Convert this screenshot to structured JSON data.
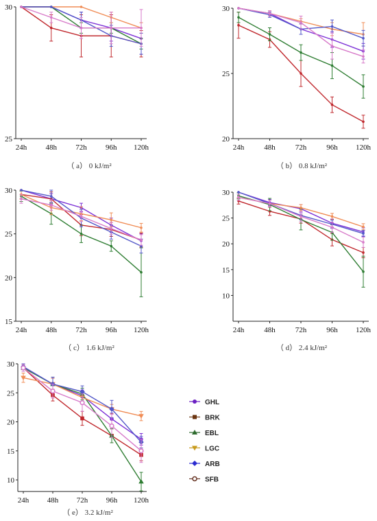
{
  "chart_data": [
    {
      "type": "line",
      "caption": "（ a） 0 kJ/m²",
      "categories": [
        "24h",
        "48h",
        "72h",
        "96h",
        "120h"
      ],
      "ylim": [
        25,
        30
      ],
      "yticks": [
        25,
        30
      ],
      "series": [
        {
          "name": "GHL",
          "values": [
            30,
            30,
            29.5,
            29.2,
            28.8
          ],
          "err": [
            0,
            0,
            0.3,
            0.5,
            0.6
          ]
        },
        {
          "name": "BRK",
          "values": [
            30,
            29.2,
            28.9,
            28.9,
            28.6
          ],
          "err": [
            0,
            0.5,
            0.8,
            0.8,
            0.5
          ]
        },
        {
          "name": "EBL",
          "values": [
            30,
            30,
            29.2,
            29.2,
            28.6
          ],
          "err": [
            0,
            0,
            0.2,
            0.2,
            0.2
          ]
        },
        {
          "name": "LGC",
          "values": [
            30,
            30,
            30,
            29.6,
            29.2
          ],
          "err": [
            0,
            0,
            0,
            0.2,
            0.2
          ]
        },
        {
          "name": "ARB",
          "values": [
            30,
            30,
            29.5,
            28.9,
            28.6
          ],
          "err": [
            0,
            0,
            0.3,
            0.4,
            0.4
          ]
        },
        {
          "name": "SFB",
          "values": [
            30,
            29.6,
            29.2,
            29.2,
            29.2
          ],
          "err": [
            0,
            0.2,
            0.4,
            0.6,
            0.7
          ]
        }
      ]
    },
    {
      "type": "line",
      "caption": "（ b） 0.8 kJ/m²",
      "categories": [
        "24h",
        "48h",
        "72h",
        "96h",
        "120h"
      ],
      "ylim": [
        20,
        30
      ],
      "yticks": [
        20,
        25,
        30
      ],
      "series": [
        {
          "name": "GHL",
          "values": [
            30,
            29.6,
            28.4,
            27.6,
            26.7
          ],
          "err": [
            0,
            0.2,
            0.4,
            0.6,
            0.6
          ]
        },
        {
          "name": "BRK",
          "values": [
            28.7,
            27.6,
            25.0,
            22.6,
            21.3
          ],
          "err": [
            1.0,
            0.6,
            1.0,
            0.6,
            0.5
          ]
        },
        {
          "name": "EBL",
          "values": [
            29.3,
            28.0,
            26.6,
            25.6,
            24.0
          ],
          "err": [
            0.4,
            0.5,
            0.6,
            1.0,
            0.9
          ]
        },
        {
          "name": "LGC",
          "values": [
            30,
            29.6,
            29.0,
            28.4,
            28.0
          ],
          "err": [
            0,
            0.2,
            0.2,
            0.5,
            0.9
          ]
        },
        {
          "name": "ARB",
          "values": [
            30,
            29.5,
            28.4,
            28.6,
            27.7
          ],
          "err": [
            0,
            0.2,
            0.4,
            0.5,
            0.6
          ]
        },
        {
          "name": "SFB",
          "values": [
            30,
            29.6,
            28.9,
            27.1,
            26.3
          ],
          "err": [
            0,
            0.2,
            0.5,
            1.0,
            0.5
          ]
        }
      ]
    },
    {
      "type": "line",
      "caption": "（ c） 1.6 kJ/m²",
      "categories": [
        "24h",
        "48h",
        "72h",
        "96h",
        "120h"
      ],
      "ylim": [
        15,
        30
      ],
      "yticks": [
        15,
        20,
        25,
        30
      ],
      "series": [
        {
          "name": "GHL",
          "values": [
            30,
            29.0,
            28.0,
            26.0,
            24.2
          ],
          "err": [
            0,
            0.6,
            0.5,
            0.8,
            0.8
          ]
        },
        {
          "name": "BRK",
          "values": [
            29.5,
            29.0,
            26.0,
            25.5,
            24.3
          ],
          "err": [
            0.5,
            0.8,
            1.2,
            0.8,
            0.8
          ]
        },
        {
          "name": "EBL",
          "values": [
            29.3,
            27.3,
            25.0,
            23.6,
            20.6
          ],
          "err": [
            0.6,
            1.2,
            1.0,
            0.6,
            2.8
          ]
        },
        {
          "name": "LGC",
          "values": [
            29.5,
            28.0,
            27.3,
            26.6,
            25.7
          ],
          "err": [
            0.5,
            0.8,
            0.8,
            0.8,
            0.5
          ]
        },
        {
          "name": "ARB",
          "values": [
            30,
            29.3,
            26.8,
            25.2,
            23.6
          ],
          "err": [
            0,
            0.7,
            1.0,
            0.8,
            0.8
          ]
        },
        {
          "name": "SFB",
          "values": [
            29.0,
            28.3,
            27.0,
            25.6,
            24.3
          ],
          "err": [
            0.5,
            0.6,
            0.6,
            0.7,
            0.6
          ]
        }
      ]
    },
    {
      "type": "line",
      "caption": "（ d） 2.4 kJ/m²",
      "categories": [
        "24h",
        "48h",
        "72h",
        "96h",
        "120h"
      ],
      "ylim": [
        5,
        30
      ],
      "yticks": [
        10,
        15,
        20,
        25,
        30
      ],
      "series": [
        {
          "name": "GHL",
          "values": [
            30,
            28.0,
            26.8,
            24.0,
            22.3
          ],
          "err": [
            0,
            0.6,
            0.8,
            0.8,
            0.8
          ]
        },
        {
          "name": "BRK",
          "values": [
            28.3,
            26.3,
            24.8,
            20.8,
            18.3
          ],
          "err": [
            0.6,
            0.8,
            0.8,
            1.2,
            1.0
          ]
        },
        {
          "name": "EBL",
          "values": [
            29.3,
            27.6,
            24.7,
            22.2,
            14.6
          ],
          "err": [
            0.6,
            1.2,
            2.0,
            1.5,
            3.0
          ]
        },
        {
          "name": "LGC",
          "values": [
            29.0,
            27.8,
            27.0,
            25.3,
            23.3
          ],
          "err": [
            0.6,
            0.6,
            0.6,
            0.6,
            0.6
          ]
        },
        {
          "name": "ARB",
          "values": [
            30,
            27.8,
            25.5,
            23.8,
            22.0
          ],
          "err": [
            0,
            0.6,
            0.8,
            0.8,
            0.6
          ]
        },
        {
          "name": "SFB",
          "values": [
            29.0,
            27.8,
            25.3,
            23.2,
            20.3
          ],
          "err": [
            0.6,
            0.6,
            1.0,
            1.0,
            1.0
          ]
        }
      ]
    },
    {
      "type": "line",
      "caption": "（ e） 3.2 kJ/m²",
      "categories": [
        "24h",
        "48h",
        "72h",
        "96h",
        "120h"
      ],
      "ylim": [
        8,
        30
      ],
      "yticks": [
        10,
        15,
        20,
        25,
        30
      ],
      "series": [
        {
          "name": "GHL",
          "values": [
            29.5,
            26.5,
            24.5,
            20.5,
            17.0
          ],
          "err": [
            0.5,
            1.0,
            1.0,
            1.0,
            1.0
          ]
        },
        {
          "name": "BRK",
          "values": [
            29.3,
            24.6,
            20.6,
            17.6,
            14.3
          ],
          "err": [
            0.6,
            1.0,
            1.2,
            1.2,
            1.0
          ]
        },
        {
          "name": "EBL",
          "values": [
            29.3,
            26.5,
            24.8,
            17.6,
            9.7
          ],
          "err": [
            0.6,
            1.2,
            1.0,
            1.2,
            1.6
          ]
        },
        {
          "name": "LGC",
          "values": [
            27.6,
            26.5,
            24.2,
            22.2,
            21.0
          ],
          "err": [
            0.8,
            1.0,
            1.0,
            0.8,
            0.8
          ]
        },
        {
          "name": "ARB",
          "values": [
            29.5,
            26.5,
            25.2,
            22.2,
            16.5
          ],
          "err": [
            0.5,
            1.2,
            1.0,
            1.5,
            1.0
          ]
        },
        {
          "name": "SFB",
          "values": [
            29.3,
            25.3,
            23.3,
            19.3,
            15.0
          ],
          "err": [
            0.6,
            1.2,
            1.5,
            2.0,
            2.0
          ]
        }
      ]
    }
  ],
  "legend": {
    "entries": [
      {
        "name": "GHL",
        "color": "#6a1fc2",
        "marker": "circle"
      },
      {
        "name": "BRK",
        "color": "#6b3510",
        "marker": "square"
      },
      {
        "name": "EBL",
        "color": "#2e6b2e",
        "marker": "triangle-up"
      },
      {
        "name": "LGC",
        "color": "#c89b1e",
        "marker": "triangle-down"
      },
      {
        "name": "ARB",
        "color": "#2b2bd0",
        "marker": "diamond"
      },
      {
        "name": "SFB",
        "color": "#6b3a2a",
        "marker": "circle-open"
      }
    ]
  },
  "series_colors": {
    "GHL": "#7b2fd6",
    "BRK": "#c0282d",
    "EBL": "#2e7d32",
    "LGC": "#f08c55",
    "ARB": "#5257c8",
    "SFB": "#d77ac9"
  }
}
